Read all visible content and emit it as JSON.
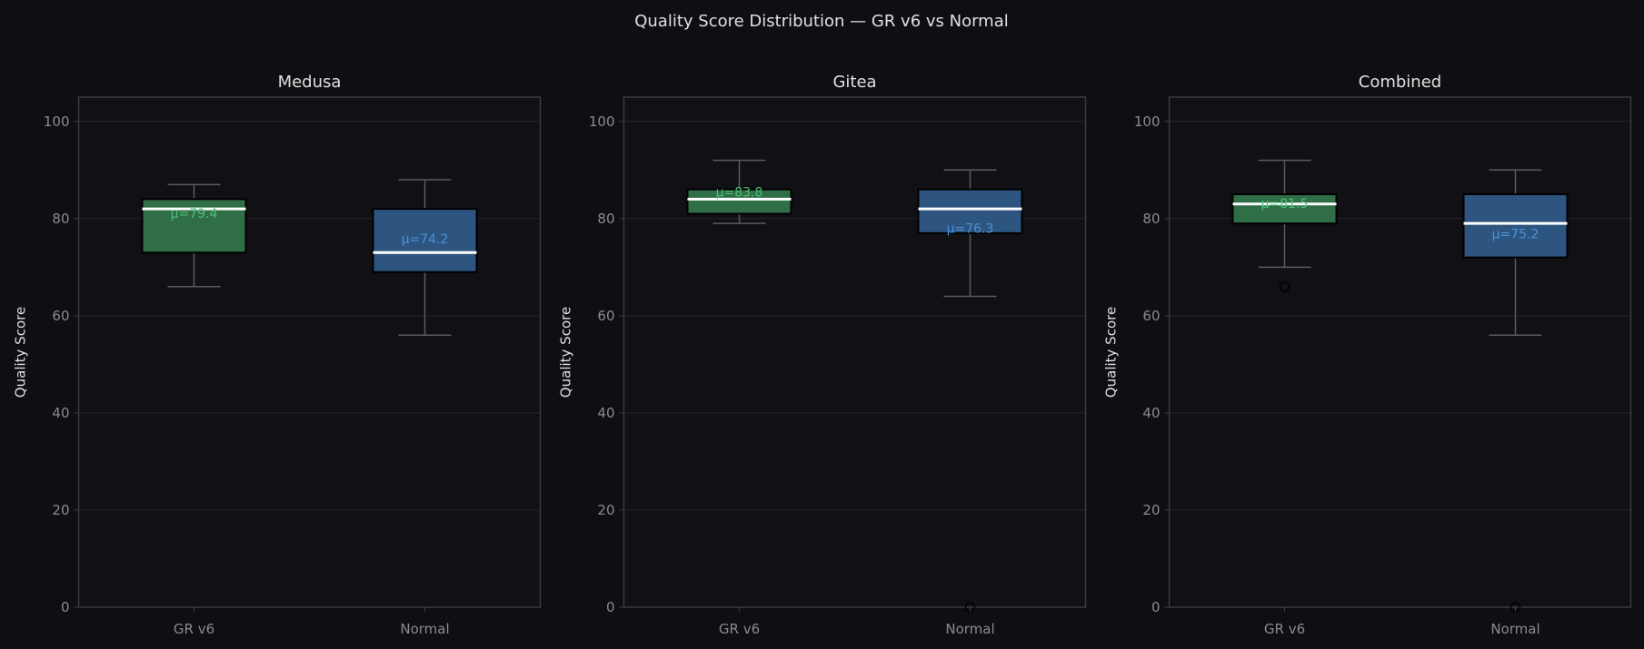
{
  "chart_data": {
    "type": "box",
    "title": "Quality Score Distribution — GR v6 vs Normal",
    "colors": {
      "GR v6": "#2f6e46",
      "Normal": "#2d5580",
      "GR v6_text": "#4ec07a",
      "Normal_text": "#4a90d9",
      "median": "#ffffff",
      "background": "#0f0f13"
    },
    "grid": true,
    "ylim": [
      0,
      105
    ],
    "yticks": [
      0,
      20,
      40,
      60,
      80,
      100
    ],
    "panels": [
      {
        "title": "Medusa",
        "ylabel": "Quality Score",
        "categories": [
          "GR v6",
          "Normal"
        ],
        "boxes": [
          {
            "name": "GR v6",
            "whisker_low": 66,
            "q1": 73,
            "median": 82,
            "q3": 84,
            "whisker_high": 87,
            "mean": 79.4,
            "mean_label": "μ=79.4",
            "outliers": []
          },
          {
            "name": "Normal",
            "whisker_low": 56,
            "q1": 69,
            "median": 73,
            "q3": 82,
            "whisker_high": 88,
            "mean": 74.2,
            "mean_label": "μ=74.2",
            "outliers": []
          }
        ]
      },
      {
        "title": "Gitea",
        "ylabel": "Quality Score",
        "categories": [
          "GR v6",
          "Normal"
        ],
        "boxes": [
          {
            "name": "GR v6",
            "whisker_low": 79,
            "q1": 81,
            "median": 84,
            "q3": 86,
            "whisker_high": 92,
            "mean": 83.8,
            "mean_label": "μ=83.8",
            "outliers": []
          },
          {
            "name": "Normal",
            "whisker_low": 64,
            "q1": 77,
            "median": 82,
            "q3": 86,
            "whisker_high": 90,
            "mean": 76.3,
            "mean_label": "μ=76.3",
            "outliers": [
              0
            ]
          }
        ]
      },
      {
        "title": "Combined",
        "ylabel": "Quality Score",
        "categories": [
          "GR v6",
          "Normal"
        ],
        "boxes": [
          {
            "name": "GR v6",
            "whisker_low": 70,
            "q1": 79,
            "median": 83,
            "q3": 85,
            "whisker_high": 92,
            "mean": 81.5,
            "mean_label": "μ=81.5",
            "outliers": [
              66
            ]
          },
          {
            "name": "Normal",
            "whisker_low": 56,
            "q1": 72,
            "median": 79,
            "q3": 85,
            "whisker_high": 90,
            "mean": 75.2,
            "mean_label": "μ=75.2",
            "outliers": [
              0
            ]
          }
        ]
      }
    ]
  }
}
